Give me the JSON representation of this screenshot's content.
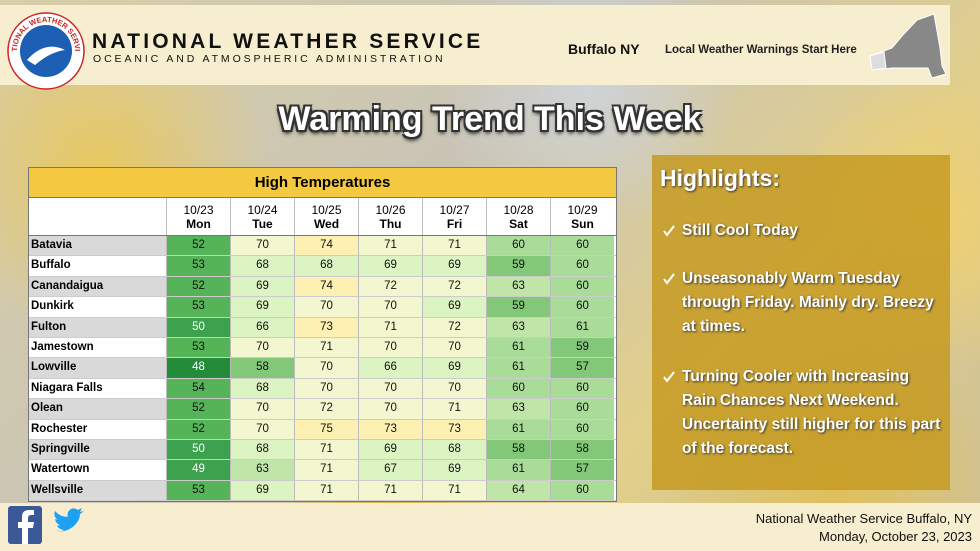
{
  "header": {
    "agency": "NATIONAL WEATHER SERVICE",
    "subagency": "OCEANIC AND ATMOSPHERIC ADMINISTRATION",
    "logo_text": "NATIONAL WEATHER SERVICE",
    "office": "Buffalo NY",
    "tagline": "Local Weather Warnings Start Here"
  },
  "title": "Warming Trend This Week",
  "table": {
    "title": "High Temperatures",
    "columns": [
      {
        "date": "10/23",
        "day": "Mon"
      },
      {
        "date": "10/24",
        "day": "Tue"
      },
      {
        "date": "10/25",
        "day": "Wed"
      },
      {
        "date": "10/26",
        "day": "Thu"
      },
      {
        "date": "10/27",
        "day": "Fri"
      },
      {
        "date": "10/28",
        "day": "Sat"
      },
      {
        "date": "10/29",
        "day": "Sun"
      }
    ],
    "rows": [
      {
        "name": "Batavia",
        "temps": [
          52,
          70,
          74,
          71,
          71,
          60,
          60
        ]
      },
      {
        "name": "Buffalo",
        "temps": [
          53,
          68,
          68,
          69,
          69,
          59,
          60
        ]
      },
      {
        "name": "Canandaigua",
        "temps": [
          52,
          69,
          74,
          72,
          72,
          63,
          60
        ]
      },
      {
        "name": "Dunkirk",
        "temps": [
          53,
          69,
          70,
          70,
          69,
          59,
          60
        ]
      },
      {
        "name": "Fulton",
        "temps": [
          50,
          66,
          73,
          71,
          72,
          63,
          61
        ]
      },
      {
        "name": "Jamestown",
        "temps": [
          53,
          70,
          71,
          70,
          70,
          61,
          59
        ]
      },
      {
        "name": "Lowville",
        "temps": [
          48,
          58,
          70,
          66,
          69,
          61,
          57
        ]
      },
      {
        "name": "Niagara Falls",
        "temps": [
          54,
          68,
          70,
          70,
          70,
          60,
          60
        ]
      },
      {
        "name": "Olean",
        "temps": [
          52,
          70,
          72,
          70,
          71,
          63,
          60
        ]
      },
      {
        "name": "Rochester",
        "temps": [
          52,
          70,
          75,
          73,
          73,
          61,
          60
        ]
      },
      {
        "name": "Springville",
        "temps": [
          50,
          68,
          71,
          69,
          68,
          58,
          58
        ]
      },
      {
        "name": "Watertown",
        "temps": [
          49,
          63,
          71,
          67,
          69,
          61,
          57
        ]
      },
      {
        "name": "Wellsville",
        "temps": [
          53,
          69,
          71,
          71,
          71,
          64,
          60
        ]
      }
    ]
  },
  "highlights": {
    "title": "Highlights:",
    "items": [
      "Still Cool Today",
      "Unseasonably Warm Tuesday through Friday. Mainly dry. Breezy at times.",
      "Turning Cooler with Increasing Rain Chances Next Weekend. Uncertainty still higher for this part of the forecast."
    ]
  },
  "footer": {
    "office": "National Weather Service Buffalo, NY",
    "date": "Monday, October 23, 2023"
  }
}
